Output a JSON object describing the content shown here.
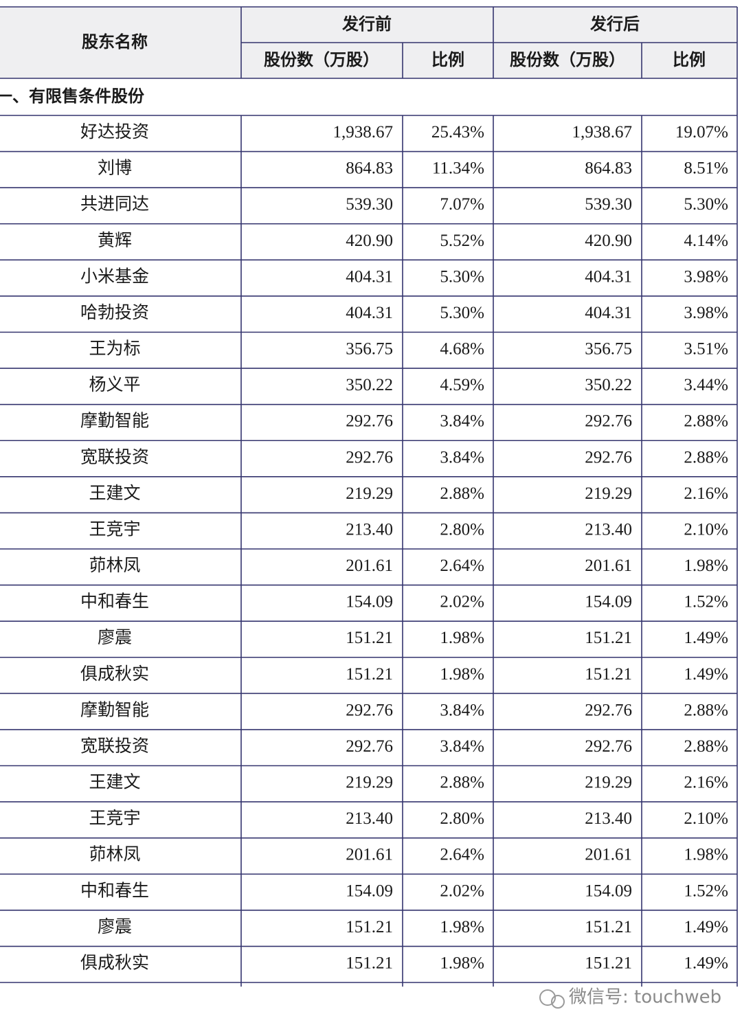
{
  "table": {
    "header": {
      "name": "股东名称",
      "before": "发行前",
      "after": "发行后",
      "sub": [
        "股份数（万股）",
        "比例",
        "股份数（万股）",
        "比例"
      ]
    },
    "section": "一、有限售条件股份",
    "rows": [
      [
        "好达投资",
        "1,938.67",
        "25.43%",
        "1,938.67",
        "19.07%"
      ],
      [
        "刘博",
        "864.83",
        "11.34%",
        "864.83",
        "8.51%"
      ],
      [
        "共进同达",
        "539.30",
        "7.07%",
        "539.30",
        "5.30%"
      ],
      [
        "黄辉",
        "420.90",
        "5.52%",
        "420.90",
        "4.14%"
      ],
      [
        "小米基金",
        "404.31",
        "5.30%",
        "404.31",
        "3.98%"
      ],
      [
        "哈勃投资",
        "404.31",
        "5.30%",
        "404.31",
        "3.98%"
      ],
      [
        "王为标",
        "356.75",
        "4.68%",
        "356.75",
        "3.51%"
      ],
      [
        "杨义平",
        "350.22",
        "4.59%",
        "350.22",
        "3.44%"
      ],
      [
        "摩勤智能",
        "292.76",
        "3.84%",
        "292.76",
        "2.88%"
      ],
      [
        "宽联投资",
        "292.76",
        "3.84%",
        "292.76",
        "2.88%"
      ],
      [
        "王建文",
        "219.29",
        "2.88%",
        "219.29",
        "2.16%"
      ],
      [
        "王竞宇",
        "213.40",
        "2.80%",
        "213.40",
        "2.10%"
      ],
      [
        "茆林凤",
        "201.61",
        "2.64%",
        "201.61",
        "1.98%"
      ],
      [
        "中和春生",
        "154.09",
        "2.02%",
        "154.09",
        "1.52%"
      ],
      [
        "廖震",
        "151.21",
        "1.98%",
        "151.21",
        "1.49%"
      ],
      [
        "俱成秋实",
        "151.21",
        "1.98%",
        "151.21",
        "1.49%"
      ],
      [
        "摩勤智能",
        "292.76",
        "3.84%",
        "292.76",
        "2.88%"
      ],
      [
        "宽联投资",
        "292.76",
        "3.84%",
        "292.76",
        "2.88%"
      ],
      [
        "王建文",
        "219.29",
        "2.88%",
        "219.29",
        "2.16%"
      ],
      [
        "王竞宇",
        "213.40",
        "2.80%",
        "213.40",
        "2.10%"
      ],
      [
        "茆林凤",
        "201.61",
        "2.64%",
        "201.61",
        "1.98%"
      ],
      [
        "中和春生",
        "154.09",
        "2.02%",
        "154.09",
        "1.52%"
      ],
      [
        "廖震",
        "151.21",
        "1.98%",
        "151.21",
        "1.49%"
      ],
      [
        "俱成秋实",
        "151.21",
        "1.98%",
        "151.21",
        "1.49%"
      ]
    ]
  },
  "watermark": "微信号: touchweb"
}
